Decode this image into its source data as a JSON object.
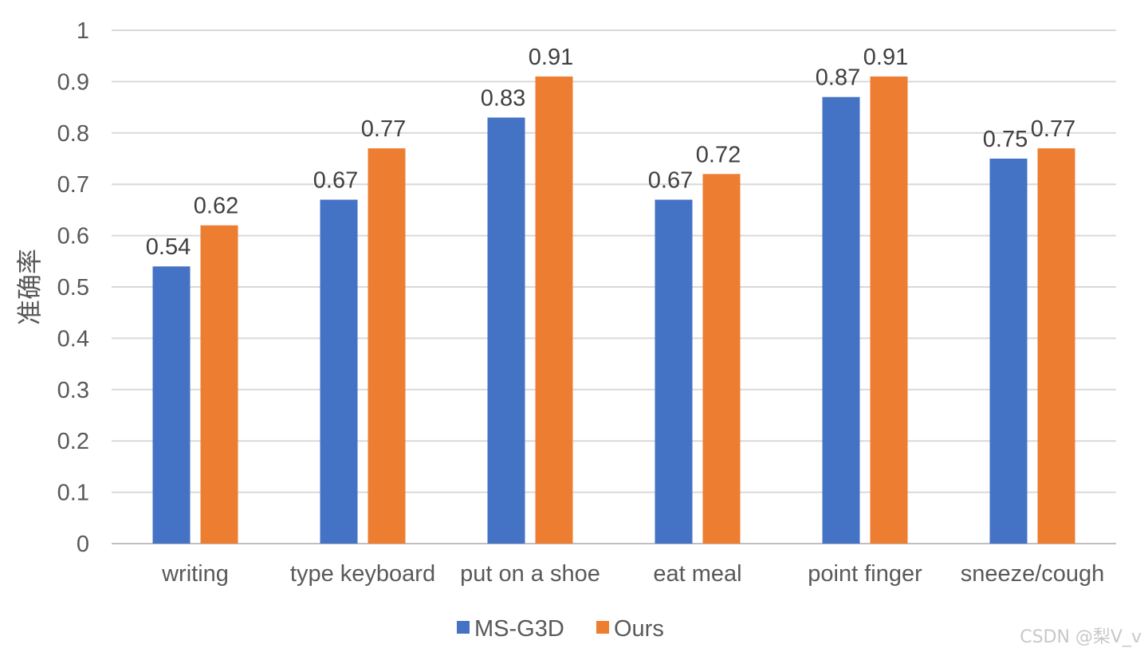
{
  "chart_data": {
    "type": "bar",
    "title": "",
    "xlabel": "",
    "ylabel": "准确率",
    "ylim": [
      0,
      1
    ],
    "yticks": [
      "0",
      "0.1",
      "0.2",
      "0.3",
      "0.4",
      "0.5",
      "0.6",
      "0.7",
      "0.8",
      "0.9",
      "1"
    ],
    "grid": true,
    "legend_position": "bottom",
    "categories": [
      "writing",
      "type keyboard",
      "put on a shoe",
      "eat meal",
      "point finger",
      "sneeze/cough"
    ],
    "series": [
      {
        "name": "MS-G3D",
        "color": "#4472C4",
        "values": [
          0.54,
          0.67,
          0.83,
          0.67,
          0.87,
          0.75
        ],
        "labels": [
          "0.54",
          "0.67",
          "0.83",
          "0.67",
          "0.87",
          "0.75"
        ]
      },
      {
        "name": "Ours",
        "color": "#ED7D31",
        "values": [
          0.62,
          0.77,
          0.91,
          0.72,
          0.91,
          0.77
        ],
        "labels": [
          "0.62",
          "0.77",
          "0.91",
          "0.72",
          "0.91",
          "0.77"
        ]
      }
    ]
  },
  "watermark": "CSDN @梨V_v"
}
